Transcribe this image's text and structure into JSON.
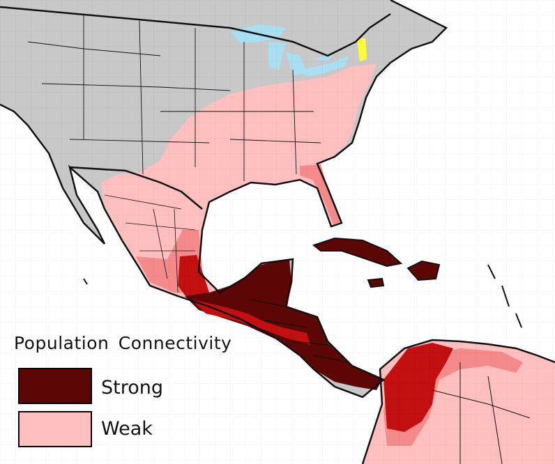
{
  "legend": {
    "title": "Population  Connectivity",
    "items": [
      {
        "label": "Strong",
        "color": "#5c0606"
      },
      {
        "label": "Weak",
        "color": "#ffbfbf"
      }
    ]
  },
  "colors": {
    "ocean": "#ffffff",
    "land_outside": "#c8c8c8",
    "weak": "#ffbfbf",
    "medium": "#f58a8a",
    "medium_high": "#e54545",
    "high": "#c20f10",
    "strong": "#5c0606",
    "lakes": "#a8dff2",
    "highlight": "#ffff33",
    "borders": "#111111"
  }
}
